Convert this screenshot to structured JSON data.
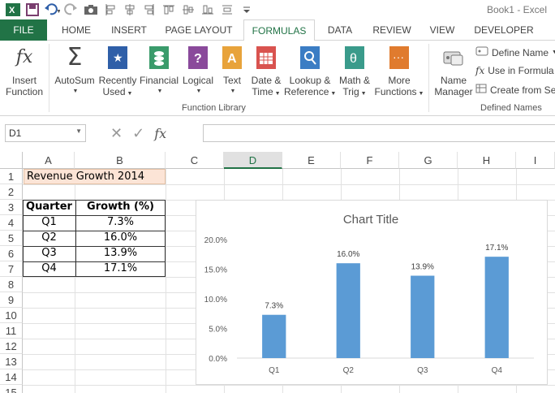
{
  "window": {
    "title": "Book1 - Excel"
  },
  "tabs": [
    "FILE",
    "HOME",
    "INSERT",
    "PAGE LAYOUT",
    "FORMULAS",
    "DATA",
    "REVIEW",
    "VIEW",
    "DEVELOPER"
  ],
  "ribbon": {
    "insert_function": [
      "Insert",
      "Function"
    ],
    "autosum": "AutoSum",
    "recently_used": [
      "Recently",
      "Used"
    ],
    "financial": "Financial",
    "logical": "Logical",
    "text": "Text",
    "date_time": [
      "Date &",
      "Time"
    ],
    "lookup": [
      "Lookup &",
      "Reference"
    ],
    "math_trig": [
      "Math &",
      "Trig"
    ],
    "more_functions": [
      "More",
      "Functions"
    ],
    "function_library_label": "Function Library",
    "name_manager": [
      "Name",
      "Manager"
    ],
    "define_name": "Define Name",
    "use_in_formula": "Use in Formula",
    "create_from_selection": "Create from Se",
    "defined_names_label": "Defined Names"
  },
  "formula_bar": {
    "name_box": "D1",
    "fx": "fx",
    "value": ""
  },
  "grid": {
    "columns": [
      "A",
      "B",
      "C",
      "D",
      "E",
      "F",
      "G",
      "H",
      "I"
    ],
    "rows": [
      "1",
      "2",
      "3",
      "4",
      "5",
      "6",
      "7",
      "8",
      "9",
      "10",
      "11",
      "12",
      "13",
      "14",
      "15"
    ],
    "selected_column": "D",
    "sheet_title": "Revenue Growth 2014",
    "table_headers": [
      "Quarter",
      "Growth (%)"
    ],
    "table_rows": [
      [
        "Q1",
        "7.3%"
      ],
      [
        "Q2",
        "16.0%"
      ],
      [
        "Q3",
        "13.9%"
      ],
      [
        "Q4",
        "17.1%"
      ]
    ]
  },
  "colors": {
    "accent": "#217346",
    "bar": "#5b9bd5",
    "title_cell": "#fce4d6"
  },
  "chart_data": {
    "type": "bar",
    "title": "Chart Title",
    "categories": [
      "Q1",
      "Q2",
      "Q3",
      "Q4"
    ],
    "values": [
      7.3,
      16.0,
      13.9,
      17.1
    ],
    "data_labels": [
      "7.3%",
      "16.0%",
      "13.9%",
      "17.1%"
    ],
    "ylim": [
      0,
      20
    ],
    "yticks": [
      "0.0%",
      "5.0%",
      "10.0%",
      "15.0%",
      "20.0%"
    ],
    "grid": false,
    "legend": "none"
  }
}
